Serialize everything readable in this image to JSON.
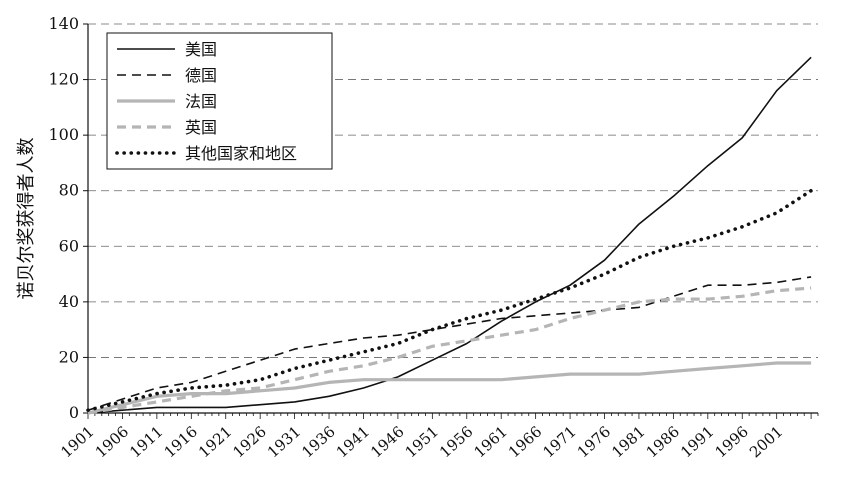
{
  "chart_data": {
    "type": "line",
    "ylabel": "诺贝尔奖获得者人数",
    "xlabel": "",
    "ylim": [
      0,
      140
    ],
    "xlim": [
      1901,
      2007
    ],
    "yticks": [
      0,
      20,
      40,
      60,
      80,
      100,
      120,
      140
    ],
    "xticks": [
      "1901",
      "1906",
      "1911",
      "1916",
      "1921",
      "1926",
      "1931",
      "1936",
      "1941",
      "1946",
      "1951",
      "1956",
      "1961",
      "1966",
      "1971",
      "1976",
      "1981",
      "1986",
      "1991",
      "1996",
      "2001"
    ],
    "grid": "horizontal-dashed",
    "legend_position": "top-left",
    "series": [
      {
        "name": "美国",
        "style": "solid",
        "color": "#111111",
        "points": [
          [
            1901,
            0
          ],
          [
            1906,
            1
          ],
          [
            1911,
            2
          ],
          [
            1916,
            2
          ],
          [
            1921,
            2
          ],
          [
            1926,
            3
          ],
          [
            1931,
            4
          ],
          [
            1936,
            6
          ],
          [
            1941,
            9
          ],
          [
            1946,
            13
          ],
          [
            1951,
            19
          ],
          [
            1956,
            25
          ],
          [
            1961,
            33
          ],
          [
            1966,
            40
          ],
          [
            1971,
            46
          ],
          [
            1976,
            55
          ],
          [
            1981,
            68
          ],
          [
            1986,
            78
          ],
          [
            1991,
            89
          ],
          [
            1996,
            99
          ],
          [
            2001,
            116
          ],
          [
            2006,
            128
          ]
        ]
      },
      {
        "name": "德国",
        "style": "dashed",
        "color": "#111111",
        "points": [
          [
            1901,
            1
          ],
          [
            1906,
            5
          ],
          [
            1911,
            9
          ],
          [
            1916,
            11
          ],
          [
            1921,
            15
          ],
          [
            1926,
            19
          ],
          [
            1931,
            23
          ],
          [
            1936,
            25
          ],
          [
            1941,
            27
          ],
          [
            1946,
            28
          ],
          [
            1951,
            30
          ],
          [
            1956,
            32
          ],
          [
            1961,
            34
          ],
          [
            1966,
            35
          ],
          [
            1971,
            36
          ],
          [
            1976,
            37
          ],
          [
            1981,
            38
          ],
          [
            1986,
            42
          ],
          [
            1991,
            46
          ],
          [
            1996,
            46
          ],
          [
            2001,
            47
          ],
          [
            2006,
            49
          ]
        ]
      },
      {
        "name": "法国",
        "style": "solid",
        "color": "#b5b5b5",
        "points": [
          [
            1901,
            0
          ],
          [
            1906,
            3
          ],
          [
            1911,
            6
          ],
          [
            1916,
            7
          ],
          [
            1921,
            7
          ],
          [
            1926,
            8
          ],
          [
            1931,
            9
          ],
          [
            1936,
            11
          ],
          [
            1941,
            12
          ],
          [
            1946,
            12
          ],
          [
            1951,
            12
          ],
          [
            1956,
            12
          ],
          [
            1961,
            12
          ],
          [
            1966,
            13
          ],
          [
            1971,
            14
          ],
          [
            1976,
            14
          ],
          [
            1981,
            14
          ],
          [
            1986,
            15
          ],
          [
            1991,
            16
          ],
          [
            1996,
            17
          ],
          [
            2001,
            18
          ],
          [
            2006,
            18
          ]
        ]
      },
      {
        "name": "英国",
        "style": "dashed",
        "color": "#b5b5b5",
        "points": [
          [
            1901,
            0
          ],
          [
            1906,
            2
          ],
          [
            1911,
            4
          ],
          [
            1916,
            6
          ],
          [
            1921,
            8
          ],
          [
            1926,
            9
          ],
          [
            1931,
            12
          ],
          [
            1936,
            15
          ],
          [
            1941,
            17
          ],
          [
            1946,
            20
          ],
          [
            1951,
            24
          ],
          [
            1956,
            26
          ],
          [
            1961,
            28
          ],
          [
            1966,
            30
          ],
          [
            1971,
            34
          ],
          [
            1976,
            37
          ],
          [
            1981,
            40
          ],
          [
            1986,
            41
          ],
          [
            1991,
            41
          ],
          [
            1996,
            42
          ],
          [
            2001,
            44
          ],
          [
            2006,
            45
          ]
        ]
      },
      {
        "name": "其他国家和地区",
        "style": "dotted",
        "color": "#111111",
        "points": [
          [
            1901,
            1
          ],
          [
            1906,
            4
          ],
          [
            1911,
            7
          ],
          [
            1916,
            9
          ],
          [
            1921,
            10
          ],
          [
            1926,
            12
          ],
          [
            1931,
            16
          ],
          [
            1936,
            19
          ],
          [
            1941,
            22
          ],
          [
            1946,
            25
          ],
          [
            1951,
            30
          ],
          [
            1956,
            34
          ],
          [
            1961,
            37
          ],
          [
            1966,
            41
          ],
          [
            1971,
            45
          ],
          [
            1976,
            50
          ],
          [
            1981,
            56
          ],
          [
            1986,
            60
          ],
          [
            1991,
            63
          ],
          [
            1996,
            67
          ],
          [
            2001,
            72
          ],
          [
            2006,
            80
          ]
        ]
      }
    ]
  }
}
